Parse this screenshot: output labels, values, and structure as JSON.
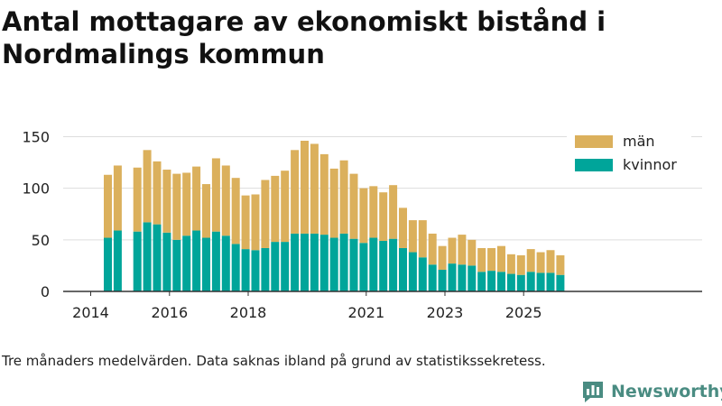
{
  "title": "Antal mottagare av ekonomiskt bistånd i Nordmalings kommun",
  "footnote": "Tre månaders medelvärden. Data saknas ibland på grund av statistikssekretess.",
  "brand": {
    "name": "Newsworthy",
    "icon": "newsworthy-logo-icon"
  },
  "colors": {
    "man": "#dbb05c",
    "kvinnor": "#00a59a",
    "grid": "#dddddd",
    "axis": "#333333",
    "text": "#222222",
    "brand": "#4a8c82"
  },
  "chart_data": {
    "type": "bar",
    "stacked": true,
    "title": "Antal mottagare av ekonomiskt bistånd i Nordmalings kommun",
    "xlabel": "",
    "ylabel": "",
    "ylim": [
      0,
      160
    ],
    "y_ticks": [
      0,
      50,
      100,
      150
    ],
    "x_ticks": [
      "2014",
      "2016",
      "2018",
      "2021",
      "2023",
      "2025"
    ],
    "legend_position": "top-right",
    "legend": [
      "män",
      "kvinnor"
    ],
    "categories": [
      "2014-05",
      "2014-08",
      "2014-11",
      "2015-02",
      "2015-05",
      "2015-08",
      "2015-11",
      "2016-02",
      "2016-05",
      "2016-08",
      "2016-11",
      "2017-02",
      "2017-05",
      "2017-08",
      "2017-11",
      "2018-02",
      "2018-05",
      "2018-08",
      "2018-11",
      "2019-02",
      "2019-05",
      "2019-08",
      "2019-11",
      "2020-02",
      "2020-05",
      "2020-08",
      "2020-11",
      "2021-02",
      "2021-05",
      "2021-08",
      "2021-11",
      "2022-02",
      "2022-05",
      "2022-08",
      "2022-11",
      "2023-02",
      "2023-05",
      "2023-08",
      "2023-11",
      "2024-02",
      "2024-05",
      "2024-08",
      "2024-11",
      "2025-02",
      "2025-05",
      "2025-08",
      "2025-11"
    ],
    "series": [
      {
        "name": "kvinnor",
        "values": [
          52,
          59,
          null,
          58,
          67,
          65,
          57,
          50,
          54,
          59,
          52,
          58,
          54,
          46,
          41,
          40,
          42,
          48,
          48,
          56,
          56,
          56,
          55,
          52,
          56,
          51,
          47,
          52,
          49,
          51,
          42,
          38,
          33,
          26,
          21,
          27,
          26,
          25,
          19,
          20,
          19,
          17,
          16,
          19,
          18,
          18,
          16
        ]
      },
      {
        "name": "män",
        "values": [
          61,
          63,
          null,
          62,
          70,
          61,
          61,
          64,
          61,
          62,
          52,
          71,
          68,
          64,
          52,
          54,
          66,
          64,
          69,
          81,
          90,
          87,
          78,
          67,
          71,
          63,
          53,
          50,
          47,
          52,
          39,
          31,
          36,
          30,
          23,
          25,
          29,
          25,
          23,
          22,
          25,
          19,
          19,
          22,
          20,
          22,
          19
        ]
      }
    ]
  }
}
